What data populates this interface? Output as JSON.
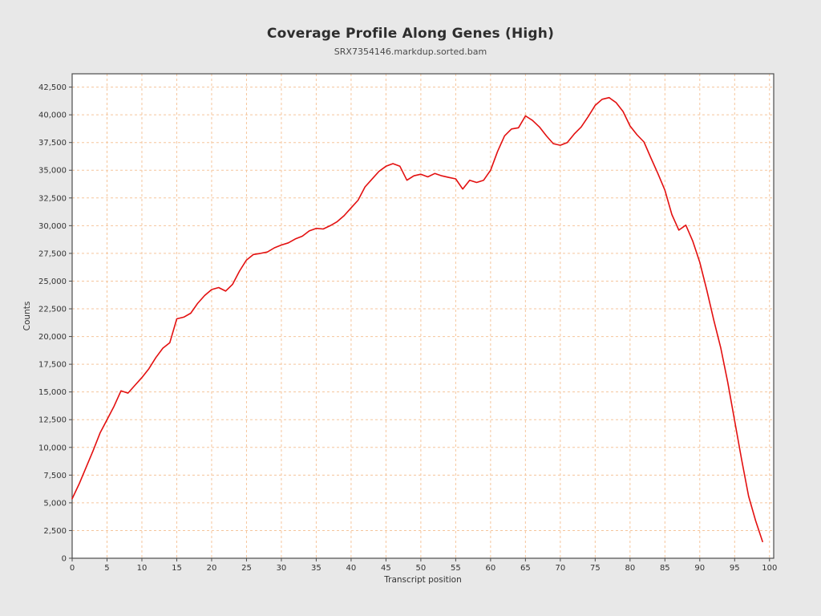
{
  "figure": {
    "background_color": "#e8e8e8",
    "plot_background_color": "#ffffff",
    "plot_border_color": "#4d4d4d",
    "grid_color": "#f5c59c",
    "grid_style": "dashed",
    "tick_label_color": "#333333",
    "line_color": "#e31010"
  },
  "chart_data": {
    "type": "line",
    "title": "Coverage Profile Along Genes (High)",
    "subtitle": "SRX7354146.markdup.sorted.bam",
    "xlabel": "Transcript position",
    "ylabel": "Counts",
    "legend": "none",
    "grid": "dashed orange, both axes, at every tick",
    "xlim": [
      0,
      100.6
    ],
    "ylim": [
      0,
      43700
    ],
    "x_ticks": [
      0,
      5,
      10,
      15,
      20,
      25,
      30,
      35,
      40,
      45,
      50,
      55,
      60,
      65,
      70,
      75,
      80,
      85,
      90,
      95,
      100
    ],
    "y_ticks": [
      0,
      2500,
      5000,
      7500,
      10000,
      12500,
      15000,
      17500,
      20000,
      22500,
      25000,
      27500,
      30000,
      32500,
      35000,
      37500,
      40000,
      42500
    ],
    "y_tick_labels": [
      "0",
      "2,500",
      "5,000",
      "7,500",
      "10,000",
      "12,500",
      "15,000",
      "17,500",
      "20,000",
      "22,500",
      "25,000",
      "27,500",
      "30,000",
      "32,500",
      "35,000",
      "37,500",
      "40,000",
      "42,500"
    ],
    "series": [
      {
        "name": "SRX7354146.markdup.sorted.bam",
        "color": "#e31010",
        "x": [
          0,
          1,
          2,
          3,
          4,
          5,
          6,
          7,
          8,
          9,
          10,
          11,
          12,
          13,
          14,
          15,
          16,
          17,
          18,
          19,
          20,
          21,
          22,
          23,
          24,
          25,
          26,
          27,
          28,
          29,
          30,
          31,
          32,
          33,
          34,
          35,
          36,
          37,
          38,
          39,
          40,
          41,
          42,
          43,
          44,
          45,
          46,
          47,
          48,
          49,
          50,
          51,
          52,
          53,
          54,
          55,
          56,
          57,
          58,
          59,
          60,
          61,
          62,
          63,
          64,
          65,
          66,
          67,
          68,
          69,
          70,
          71,
          72,
          73,
          74,
          75,
          76,
          77,
          78,
          79,
          80,
          81,
          82,
          83,
          84,
          85,
          86,
          87,
          88,
          89,
          90,
          91,
          92,
          93,
          94,
          95,
          96,
          97,
          98,
          99
        ],
        "values": [
          5370,
          6700,
          8200,
          9700,
          11300,
          12500,
          13700,
          15100,
          14900,
          15600,
          16300,
          17100,
          18100,
          18950,
          19450,
          21600,
          21750,
          22100,
          23000,
          23700,
          24240,
          24420,
          24100,
          24700,
          25900,
          26900,
          27400,
          27500,
          27620,
          28000,
          28250,
          28450,
          28800,
          29050,
          29530,
          29760,
          29700,
          30000,
          30360,
          30900,
          31600,
          32300,
          33500,
          34200,
          34900,
          35360,
          35600,
          35360,
          34100,
          34500,
          34640,
          34400,
          34710,
          34500,
          34350,
          34220,
          33300,
          34100,
          33900,
          34100,
          35000,
          36700,
          38100,
          38720,
          38830,
          39900,
          39500,
          38900,
          38100,
          37400,
          37250,
          37500,
          38270,
          38900,
          39840,
          40850,
          41400,
          41550,
          41100,
          40300,
          39000,
          38200,
          37550,
          36100,
          34700,
          33200,
          31000,
          29600,
          30050,
          28600,
          26700,
          24200,
          21500,
          19000,
          15900,
          12400,
          8900,
          5600,
          3400,
          1500
        ]
      }
    ]
  }
}
